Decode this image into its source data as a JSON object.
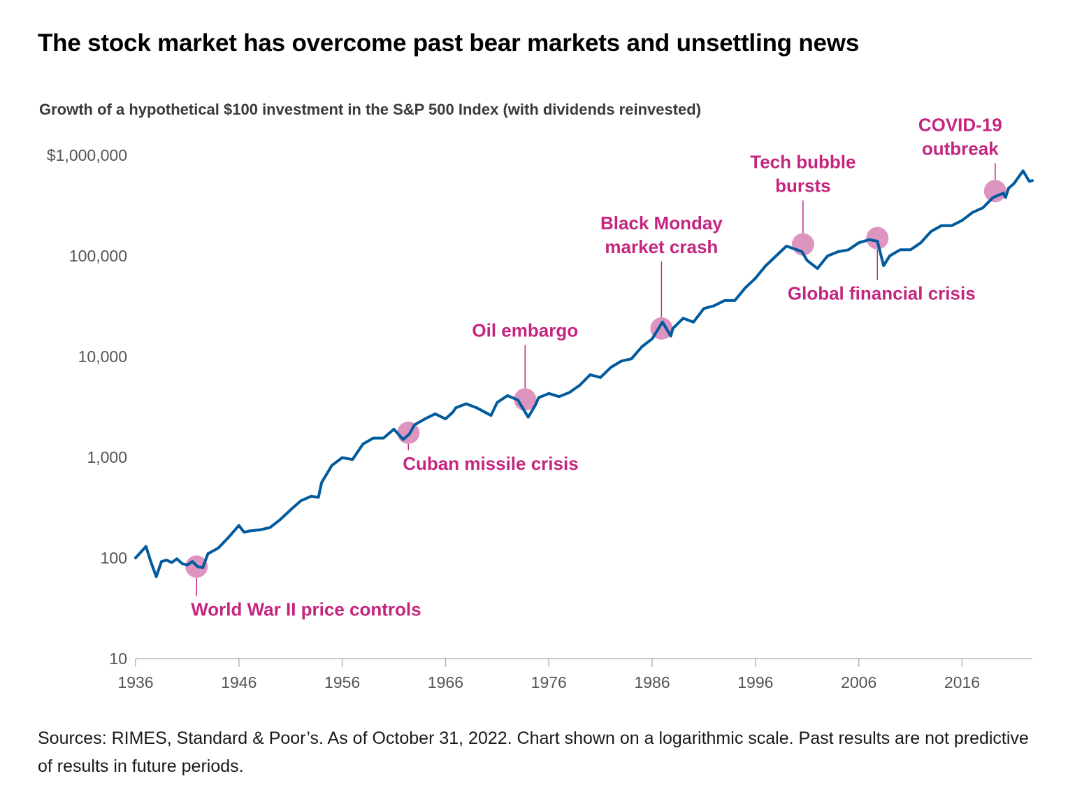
{
  "title": "The stock market has overcome past bear markets and unsettling news",
  "footnote": "Sources: RIMES, Standard & Poor’s. As of October 31, 2022. Chart shown on a logarithmic scale. Past results are not predictive of results in future periods.",
  "colors": {
    "line": "#005a9c",
    "highlight_line": "#12305c",
    "annotation": "#c4267f",
    "marker": "#d98ab9",
    "axis": "#b5b5b5"
  },
  "chart_data": {
    "type": "line",
    "title": "Growth of a hypothetical $100 investment in the S&P 500 Index (with dividends reinvested)",
    "xlabel": "",
    "ylabel": "",
    "y_scale": "log",
    "xlim": [
      1936,
      2022.8
    ],
    "ylim": [
      10,
      1000000
    ],
    "x_ticks": [
      1936,
      1946,
      1956,
      1966,
      1976,
      1986,
      1996,
      2006,
      2016
    ],
    "x_tick_labels": [
      "1936",
      "1946",
      "1956",
      "1966",
      "1976",
      "1986",
      "1996",
      "2006",
      "2016"
    ],
    "y_ticks": [
      10,
      100,
      1000,
      10000,
      100000,
      1000000
    ],
    "y_tick_labels": [
      "10",
      "100",
      "1,000",
      "10,000",
      "100,000",
      "$1,000,000"
    ],
    "grid": false,
    "series": [
      {
        "name": "",
        "x": [
          1936,
          1937,
          1937.5,
          1938,
          1938.5,
          1939,
          1939.5,
          1940,
          1940.5,
          1941,
          1941.5,
          1942,
          1942.5,
          1943,
          1944,
          1945,
          1946,
          1946.5,
          1947,
          1948,
          1949,
          1950,
          1951,
          1952,
          1953,
          1953.7,
          1954,
          1955,
          1956,
          1957,
          1958,
          1959,
          1960,
          1961,
          1961.9,
          1962.5,
          1963,
          1964,
          1965,
          1966,
          1966.7,
          1967,
          1968,
          1969,
          1970.4,
          1971,
          1972,
          1973,
          1974,
          1974.7,
          1975,
          1976,
          1977,
          1978,
          1979,
          1980,
          1981,
          1982,
          1983,
          1984,
          1985,
          1986,
          1987,
          1987.8,
          1988,
          1989,
          1990,
          1991,
          1992,
          1993,
          1994,
          1995,
          1996,
          1997,
          1998,
          1999,
          2000,
          2000.5,
          2001,
          2002,
          2002.8,
          2003,
          2004,
          2005,
          2006,
          2007,
          2007.8,
          2008.4,
          2009,
          2010,
          2011,
          2012,
          2013,
          2014,
          2015,
          2016,
          2017,
          2018,
          2019,
          2020,
          2020.2,
          2020.5,
          2021,
          2021.9,
          2022.5,
          2022.8
        ],
        "y": [
          100,
          130,
          90,
          65,
          92,
          95,
          90,
          98,
          88,
          85,
          92,
          82,
          80,
          110,
          125,
          160,
          210,
          180,
          185,
          190,
          200,
          240,
          300,
          370,
          410,
          400,
          560,
          830,
          990,
          950,
          1350,
          1550,
          1550,
          1900,
          1500,
          1700,
          2100,
          2400,
          2700,
          2400,
          2800,
          3100,
          3400,
          3100,
          2600,
          3500,
          4100,
          3700,
          2500,
          3300,
          3900,
          4300,
          4000,
          4400,
          5200,
          6600,
          6200,
          7800,
          9000,
          9500,
          12500,
          15000,
          22000,
          16000,
          19000,
          24000,
          22000,
          30000,
          32000,
          36000,
          36000,
          48000,
          60000,
          80000,
          100000,
          125000,
          115000,
          110000,
          90000,
          75000,
          95000,
          100000,
          110000,
          115000,
          135000,
          145000,
          140000,
          80000,
          100000,
          115000,
          115000,
          135000,
          175000,
          200000,
          200000,
          225000,
          270000,
          300000,
          380000,
          420000,
          380000,
          470000,
          520000,
          700000,
          550000,
          560000
        ]
      }
    ],
    "annotations": [
      {
        "label": [
          "World War II price controls"
        ],
        "x": 1941.9,
        "y": 82
      },
      {
        "label": [
          "Cuban missile crisis"
        ],
        "x": 1962.4,
        "y": 1750
      },
      {
        "label": [
          "Oil embargo"
        ],
        "x": 1973.7,
        "y": 3750
      },
      {
        "label": [
          "Black Monday",
          "market crash"
        ],
        "x": 1986.9,
        "y": 19000
      },
      {
        "label": [
          "Tech bubble",
          "bursts"
        ],
        "x": 2000.6,
        "y": 130000
      },
      {
        "label": [
          "Global financial crisis"
        ],
        "x": 2007.8,
        "y": 150000
      },
      {
        "label": [
          "COVID-19",
          "outbreak"
        ],
        "x": 2019.2,
        "y": 440000
      }
    ]
  }
}
